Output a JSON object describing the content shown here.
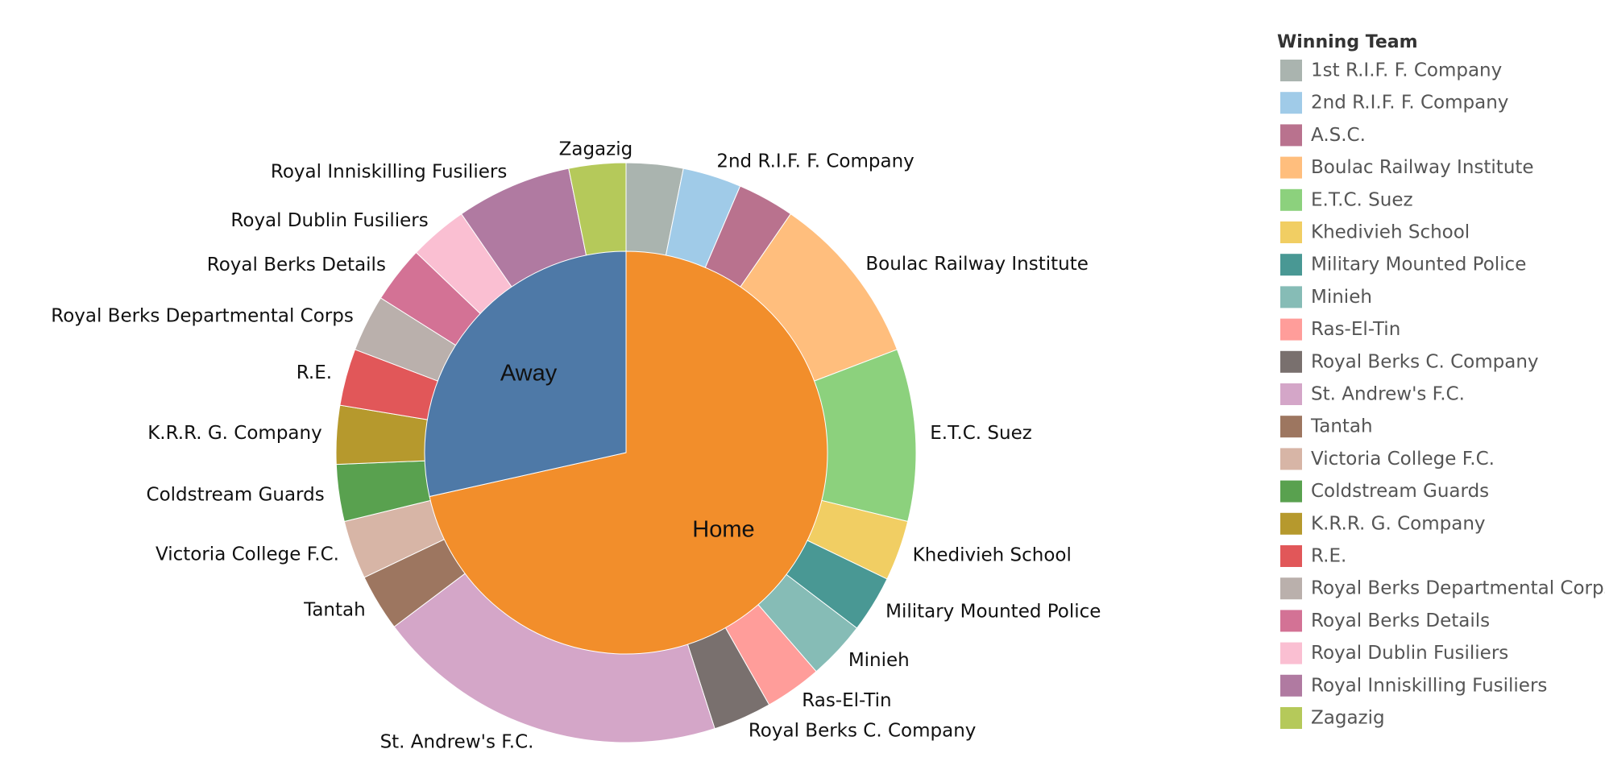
{
  "chart_data": {
    "type": "pie",
    "legend_title": "Winning Team",
    "inner": [
      {
        "name": "Home",
        "value": 71.5,
        "color": "#f28e2b"
      },
      {
        "name": "Away",
        "value": 28.5,
        "color": "#4e79a7"
      }
    ],
    "outer": [
      {
        "name": "1st R.I.F. F. Company",
        "value": 3.3,
        "color": "#aab4af",
        "label": ""
      },
      {
        "name": "2nd R.I.F. F. Company",
        "value": 3.4,
        "color": "#a0cbe8",
        "label": "2nd R.I.F. F. Company"
      },
      {
        "name": "A.S.C.",
        "value": 3.3,
        "color": "#b9728e",
        "label": ""
      },
      {
        "name": "Boulac Railway Institute",
        "value": 10.0,
        "color": "#ffbe7d",
        "label": "Boulac Railway Institute"
      },
      {
        "name": "E.T.C. Suez",
        "value": 10.0,
        "color": "#8cd17d",
        "label": "E.T.C. Suez"
      },
      {
        "name": "Khedivieh School",
        "value": 3.5,
        "color": "#f1ce63",
        "label": "Khedivieh School"
      },
      {
        "name": "Military Mounted Police",
        "value": 3.3,
        "color": "#499894",
        "label": "Military Mounted Police"
      },
      {
        "name": "Minieh",
        "value": 3.4,
        "color": "#86bcb6",
        "label": "Minieh"
      },
      {
        "name": "Ras-El-Tin",
        "value": 3.3,
        "color": "#ff9d9a",
        "label": "Ras-El-Tin"
      },
      {
        "name": "Royal Berks C. Company",
        "value": 3.4,
        "color": "#79706e",
        "label": "Royal Berks C. Company"
      },
      {
        "name": "St. Andrew's F.C.",
        "value": 20.5,
        "color": "#d4a6c8",
        "label": "St. Andrew's F.C."
      },
      {
        "name": "Tantah",
        "value": 3.3,
        "color": "#9d7660",
        "label": "Tantah"
      },
      {
        "name": "Victoria College F.C.",
        "value": 3.4,
        "color": "#d7b5a6",
        "label": "Victoria College F.C."
      },
      {
        "name": "Coldstream Guards",
        "value": 3.3,
        "color": "#59a14f",
        "label": "Coldstream Guards"
      },
      {
        "name": "K.R.R. G. Company",
        "value": 3.4,
        "color": "#b6992d",
        "label": "K.R.R. G. Company"
      },
      {
        "name": "R.E.",
        "value": 3.3,
        "color": "#e15759",
        "label": "R.E."
      },
      {
        "name": "Royal Berks Departmental Corps",
        "value": 3.3,
        "color": "#bab0ac",
        "label": "Royal Berks Departmental Corps"
      },
      {
        "name": "Royal Berks Details",
        "value": 3.3,
        "color": "#d37295",
        "label": "Royal Berks Details"
      },
      {
        "name": "Royal Dublin Fusiliers",
        "value": 3.4,
        "color": "#fabfd2",
        "label": "Royal Dublin Fusiliers"
      },
      {
        "name": "Royal Inniskilling Fusiliers",
        "value": 6.7,
        "color": "#b07aa1",
        "label": "Royal Inniskilling Fusiliers"
      },
      {
        "name": "Zagazig",
        "value": 3.3,
        "color": "#b5c95a",
        "label": "Zagazig"
      }
    ],
    "legend": [
      {
        "name": "1st R.I.F. F. Company",
        "color": "#aab4af"
      },
      {
        "name": "2nd R.I.F. F. Company",
        "color": "#a0cbe8"
      },
      {
        "name": "A.S.C.",
        "color": "#b9728e"
      },
      {
        "name": "Boulac Railway Institute",
        "color": "#ffbe7d"
      },
      {
        "name": "E.T.C. Suez",
        "color": "#8cd17d"
      },
      {
        "name": "Khedivieh School",
        "color": "#f1ce63"
      },
      {
        "name": "Military Mounted Police",
        "color": "#499894"
      },
      {
        "name": "Minieh",
        "color": "#86bcb6"
      },
      {
        "name": "Ras-El-Tin",
        "color": "#ff9d9a"
      },
      {
        "name": "Royal Berks C. Company",
        "color": "#79706e"
      },
      {
        "name": "St. Andrew's F.C.",
        "color": "#d4a6c8"
      },
      {
        "name": "Tantah",
        "color": "#9d7660"
      },
      {
        "name": "Victoria College F.C.",
        "color": "#d7b5a6"
      },
      {
        "name": "Coldstream Guards",
        "color": "#59a14f"
      },
      {
        "name": "K.R.R. G. Company",
        "color": "#b6992d"
      },
      {
        "name": "R.E.",
        "color": "#e15759"
      },
      {
        "name": "Royal Berks Departmental Corps",
        "color": "#bab0ac"
      },
      {
        "name": "Royal Berks Details",
        "color": "#d37295"
      },
      {
        "name": "Royal Dublin Fusiliers",
        "color": "#fabfd2"
      },
      {
        "name": "Royal Inniskilling Fusiliers",
        "color": "#b07aa1"
      },
      {
        "name": "Zagazig",
        "color": "#b5c95a"
      }
    ]
  }
}
